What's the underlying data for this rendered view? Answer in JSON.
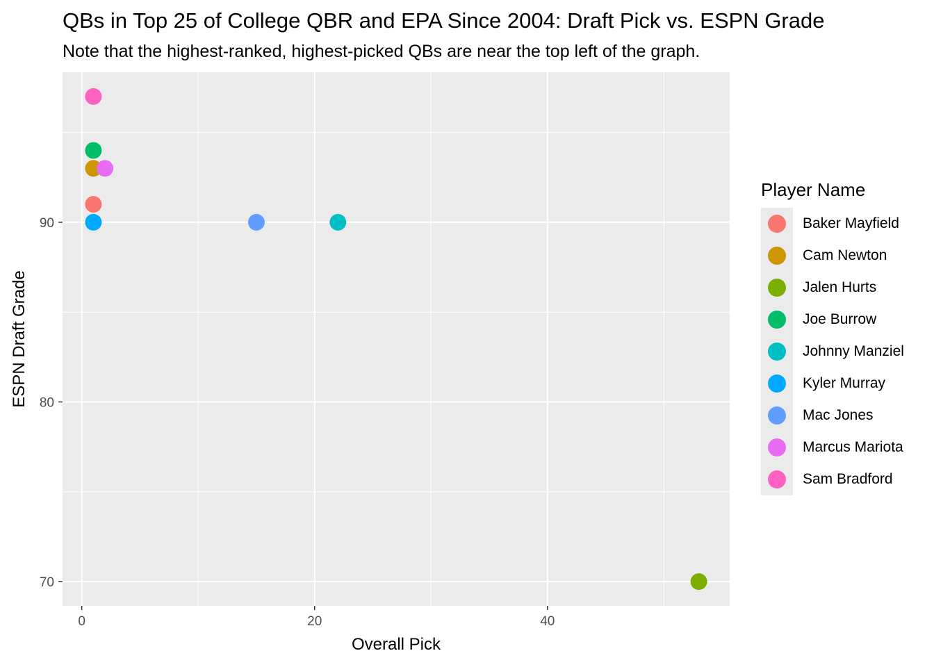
{
  "chart_data": {
    "type": "scatter",
    "title": "QBs in Top 25 of College QBR and EPA Since 2004: Draft Pick vs. ESPN Grade",
    "subtitle": "Note that the highest-ranked, highest-picked QBs are near the top left of the graph.",
    "xlabel": "Overall Pick",
    "ylabel": "ESPN Draft Grade",
    "xlim": [
      -1.65,
      55.65
    ],
    "ylim": [
      68.65,
      98.35
    ],
    "x_ticks": [
      0,
      20,
      40
    ],
    "y_ticks": [
      70,
      80,
      90
    ],
    "x_minor_ticks": [
      10,
      30,
      50
    ],
    "y_minor_ticks": [
      75,
      85,
      95
    ],
    "grid": true,
    "legend_title": "Player Name",
    "legend_position": "right",
    "series": [
      {
        "name": "Baker Mayfield",
        "color": "#F8766D",
        "points": [
          {
            "x": 1,
            "y": 91
          }
        ]
      },
      {
        "name": "Cam Newton",
        "color": "#CD9600",
        "points": [
          {
            "x": 1,
            "y": 93
          }
        ]
      },
      {
        "name": "Jalen Hurts",
        "color": "#7CAE00",
        "points": [
          {
            "x": 53,
            "y": 70
          }
        ]
      },
      {
        "name": "Joe Burrow",
        "color": "#00BE67",
        "points": [
          {
            "x": 1,
            "y": 94
          }
        ]
      },
      {
        "name": "Johnny Manziel",
        "color": "#00BFC4",
        "points": [
          {
            "x": 22,
            "y": 90
          }
        ]
      },
      {
        "name": "Kyler Murray",
        "color": "#00A9FF",
        "points": [
          {
            "x": 1,
            "y": 90
          }
        ]
      },
      {
        "name": "Mac Jones",
        "color": "#619CFF",
        "points": [
          {
            "x": 15,
            "y": 90
          }
        ]
      },
      {
        "name": "Marcus Mariota",
        "color": "#E76BF3",
        "points": [
          {
            "x": 2,
            "y": 93
          }
        ]
      },
      {
        "name": "Sam Bradford",
        "color": "#FF61C3",
        "points": [
          {
            "x": 1,
            "y": 97
          }
        ]
      }
    ]
  }
}
